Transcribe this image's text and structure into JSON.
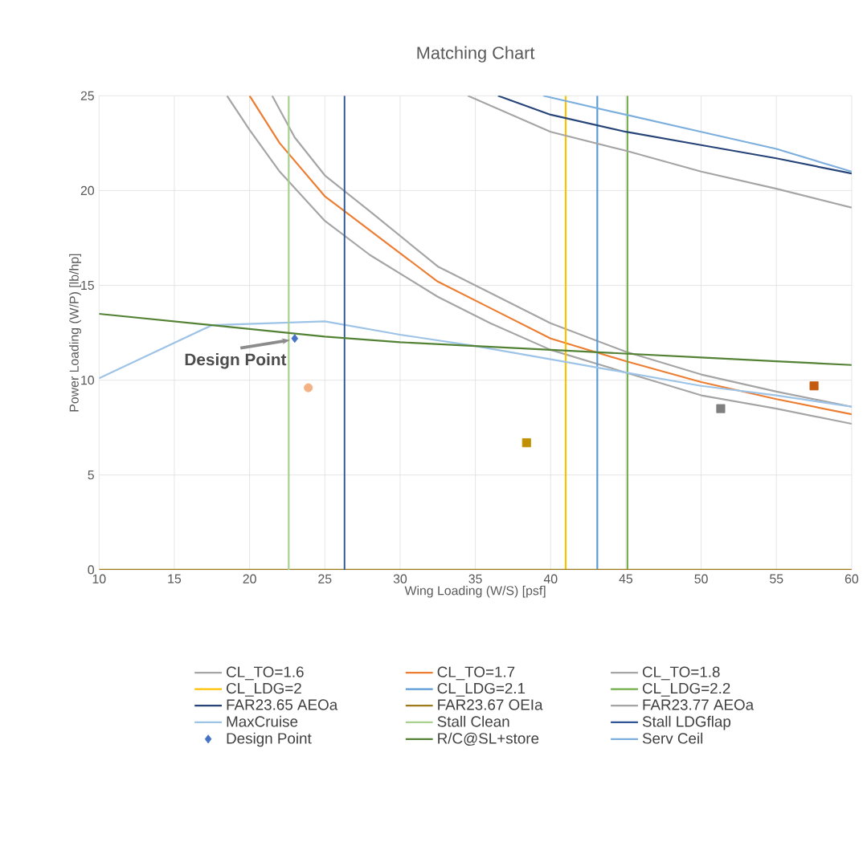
{
  "chart_data": {
    "type": "line",
    "title": "Matching Chart",
    "xlabel": "Wing Loading (W/S) [psf]",
    "ylabel": "Power Loading (W/P) [lb/hp]",
    "xlim": [
      10,
      60
    ],
    "ylim": [
      0,
      25
    ],
    "xticks": [
      10,
      15,
      20,
      25,
      30,
      35,
      40,
      45,
      50,
      55,
      60
    ],
    "yticks": [
      0,
      5,
      10,
      15,
      20,
      25
    ],
    "grid": true,
    "legend": "bottom",
    "marker": "none",
    "line_style": "solid",
    "annotations": [
      {
        "text": "Design Point",
        "x": 23,
        "y": 12.2
      }
    ],
    "series": [
      {
        "name": "CL_TO=1.6",
        "color": "#a5a5a5",
        "x": [
          18.5,
          20,
          22,
          25,
          28,
          32.5,
          36,
          40,
          45,
          50,
          55,
          60
        ],
        "values": [
          25,
          23.2,
          21,
          18.4,
          16.6,
          14.4,
          13.0,
          11.6,
          10.4,
          9.2,
          8.5,
          7.7
        ]
      },
      {
        "name": "CL_TO=1.7",
        "color": "#ed7d31",
        "x": [
          20,
          22,
          25,
          28,
          32.5,
          36,
          40,
          45,
          50,
          55,
          60
        ],
        "values": [
          25,
          22.5,
          19.7,
          17.9,
          15.2,
          13.8,
          12.2,
          11.0,
          9.9,
          9.0,
          8.2
        ]
      },
      {
        "name": "CL_TO=1.8",
        "color": "#a5a5a5",
        "x": [
          21.5,
          23,
          25,
          28,
          32.5,
          36,
          40,
          45,
          50,
          55,
          60
        ],
        "values": [
          25,
          22.8,
          20.8,
          18.9,
          16.0,
          14.6,
          13.0,
          11.5,
          10.3,
          9.4,
          8.6
        ]
      },
      {
        "name": "CL_LDG=2",
        "color": "#ffc000",
        "x": [
          41,
          41
        ],
        "values": [
          0,
          25
        ]
      },
      {
        "name": "CL_LDG=2.1",
        "color": "#5b9bd5",
        "x": [
          43.1,
          43.1
        ],
        "values": [
          0,
          25
        ]
      },
      {
        "name": "CL_LDG=2.2",
        "color": "#70ad47",
        "x": [
          45.1,
          45.1
        ],
        "values": [
          0,
          25
        ]
      },
      {
        "name": "FAR23.65 AEOa",
        "color": "#264478",
        "x": [
          36.5,
          40,
          45,
          50,
          55,
          60
        ],
        "values": [
          25,
          24.0,
          23.1,
          22.4,
          21.7,
          20.9
        ]
      },
      {
        "name": "FAR23.67 OEIa",
        "color": "#9e7b1a",
        "x": [
          10,
          60
        ],
        "values": [
          0,
          0
        ]
      },
      {
        "name": "FAR23.77 AEOa",
        "color": "#a5a5a5",
        "x": [
          34.5,
          40,
          45,
          50,
          55,
          60
        ],
        "values": [
          25,
          23.1,
          22.1,
          21.0,
          20.1,
          19.1
        ]
      },
      {
        "name": "MaxCruise",
        "color": "#9dc3e6",
        "x": [
          10,
          17.5,
          25,
          30,
          35,
          40,
          45,
          50,
          55,
          60
        ],
        "values": [
          10.1,
          12.9,
          13.1,
          12.4,
          11.8,
          11.1,
          10.4,
          9.7,
          9.2,
          8.6
        ]
      },
      {
        "name": "Stall Clean",
        "color": "#a9d18e",
        "x": [
          22.6,
          22.6
        ],
        "values": [
          0,
          25
        ]
      },
      {
        "name": "Stall LDGflap",
        "color": "#2f5597",
        "x": [
          26.3,
          26.3
        ],
        "values": [
          0,
          25
        ]
      },
      {
        "name": "Design Point",
        "type": "scatter",
        "marker": "diamond",
        "color": "#4472c4",
        "x": [
          23
        ],
        "values": [
          12.2
        ]
      },
      {
        "name": "R/C@SL+store",
        "color": "#548235",
        "x": [
          10,
          20,
          25,
          30,
          35,
          40,
          45,
          50,
          55,
          60
        ],
        "values": [
          13.5,
          12.7,
          12.3,
          12.0,
          11.8,
          11.6,
          11.4,
          11.2,
          11.0,
          10.8
        ]
      },
      {
        "name": "Serv Ceil",
        "color": "#7cafdd",
        "x": [
          39.5,
          45,
          50,
          55,
          60
        ],
        "values": [
          25,
          24.0,
          23.1,
          22.2,
          21.0
        ]
      },
      {
        "type": "scatter",
        "marker": "square",
        "color": "#c55a11",
        "x": [
          57.5
        ],
        "values": [
          9.7
        ]
      },
      {
        "type": "scatter",
        "marker": "square",
        "color": "#7f7f7f",
        "x": [
          51.3
        ],
        "values": [
          8.5
        ]
      },
      {
        "type": "scatter",
        "marker": "circle",
        "color": "#f4b183",
        "x": [
          23.9
        ],
        "values": [
          9.6
        ]
      },
      {
        "type": "scatter",
        "marker": "square",
        "color": "#bf9000",
        "x": [
          38.4
        ],
        "values": [
          6.7
        ]
      }
    ]
  }
}
